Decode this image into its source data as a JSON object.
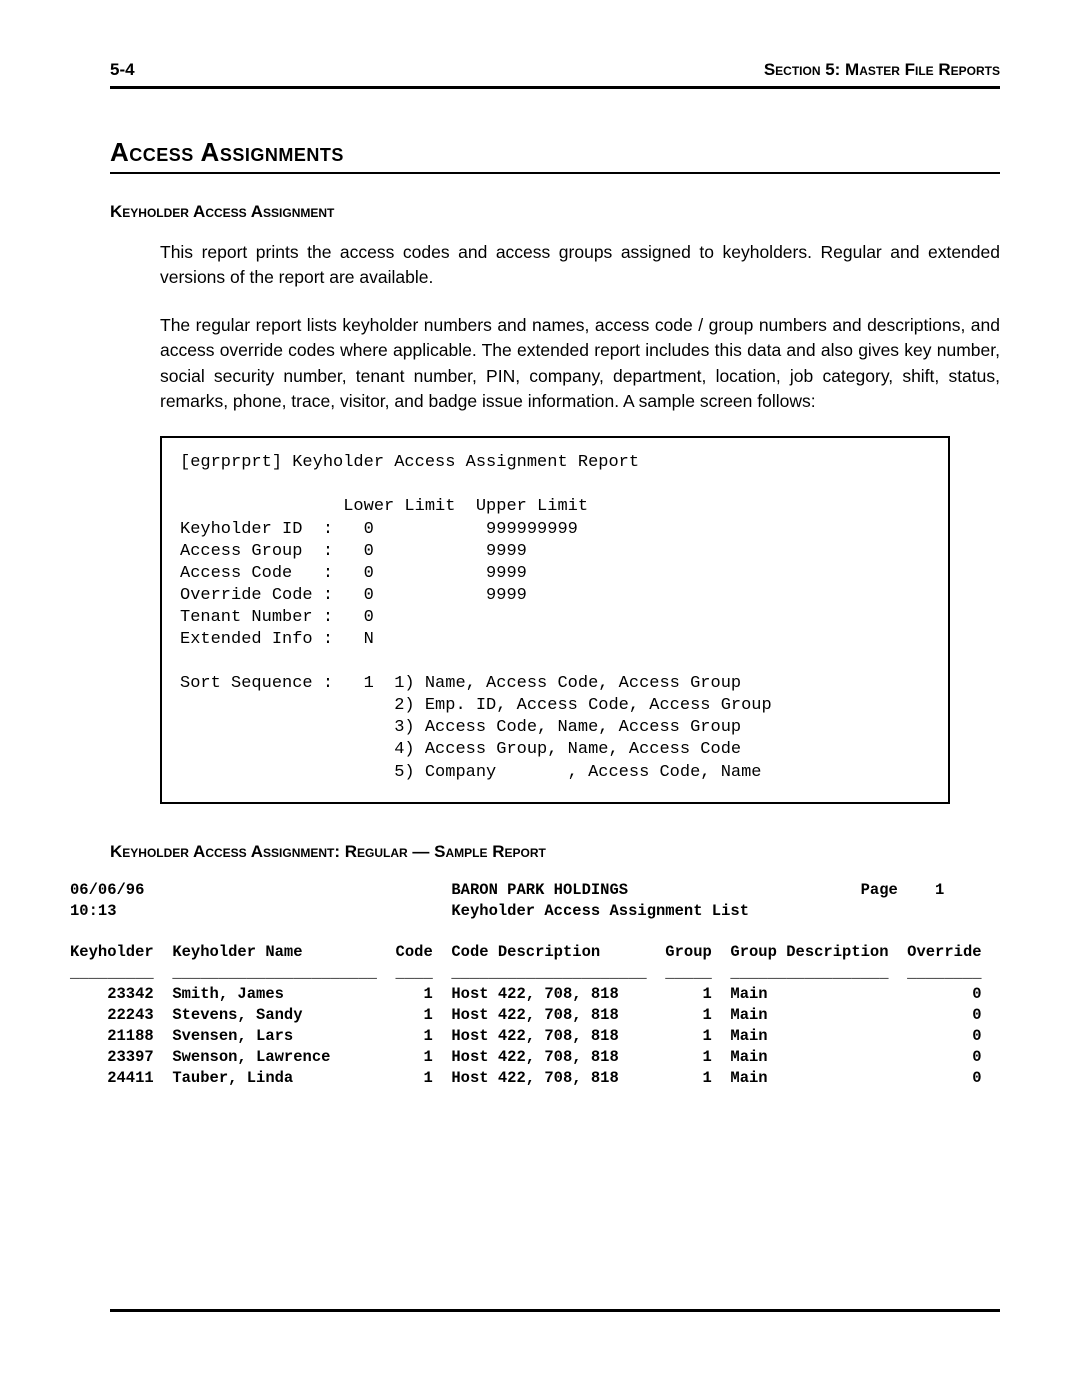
{
  "header": {
    "page_number": "5-4",
    "section_label": "Section 5: Master File Reports"
  },
  "section_title": "Access Assignments",
  "sub1_title": "Keyholder Access Assignment",
  "para1": "This report prints the access codes and access groups assigned to keyholders.  Regular and extended versions of the report are available.",
  "para2": "The regular report lists keyholder numbers and names, access code / group numbers and descriptions, and access override codes where applicable.  The extended report includes this data and also gives key number, social security number, tenant number, PIN, company, department, location, job category, shift, status, remarks, phone, trace, visitor, and badge issue information. A sample screen follows:",
  "terminal": {
    "title": "[egrprprt] Keyholder Access Assignment Report",
    "col_headers": "                Lower Limit  Upper Limit",
    "rows": [
      "Keyholder ID  :   0           999999999",
      "Access Group  :   0           9999",
      "Access Code   :   0           9999",
      "Override Code :   0           9999",
      "Tenant Number :   0",
      "Extended Info :   N"
    ],
    "sort_label": "Sort Sequence :   1  1) Name, Access Code, Access Group",
    "sort_options": [
      "                     2) Emp. ID, Access Code, Access Group",
      "                     3) Access Code, Name, Access Group",
      "                     4) Access Group, Name, Access Code",
      "                     5) Company       , Access Code, Name"
    ]
  },
  "sub2_title": "Keyholder Access Assignment: Regular — Sample Report",
  "report": {
    "line1": "06/06/96                                 BARON PARK HOLDINGS                         Page    1",
    "line2": "10:13                                    Keyholder Access Assignment List",
    "header": "Keyholder  Keyholder Name          Code  Code Description       Group  Group Description  Override",
    "rule": "_________  ______________________  ____  _____________________  _____  _________________  ________",
    "rows": [
      "    23342  Smith, James               1  Host 422, 708, 818         1  Main                      0",
      "    22243  Stevens, Sandy             1  Host 422, 708, 818         1  Main                      0",
      "    21188  Svensen, Lars              1  Host 422, 708, 818         1  Main                      0",
      "    23397  Swenson, Lawrence          1  Host 422, 708, 818         1  Main                      0",
      "    24411  Tauber, Linda              1  Host 422, 708, 818         1  Main                      0"
    ]
  }
}
